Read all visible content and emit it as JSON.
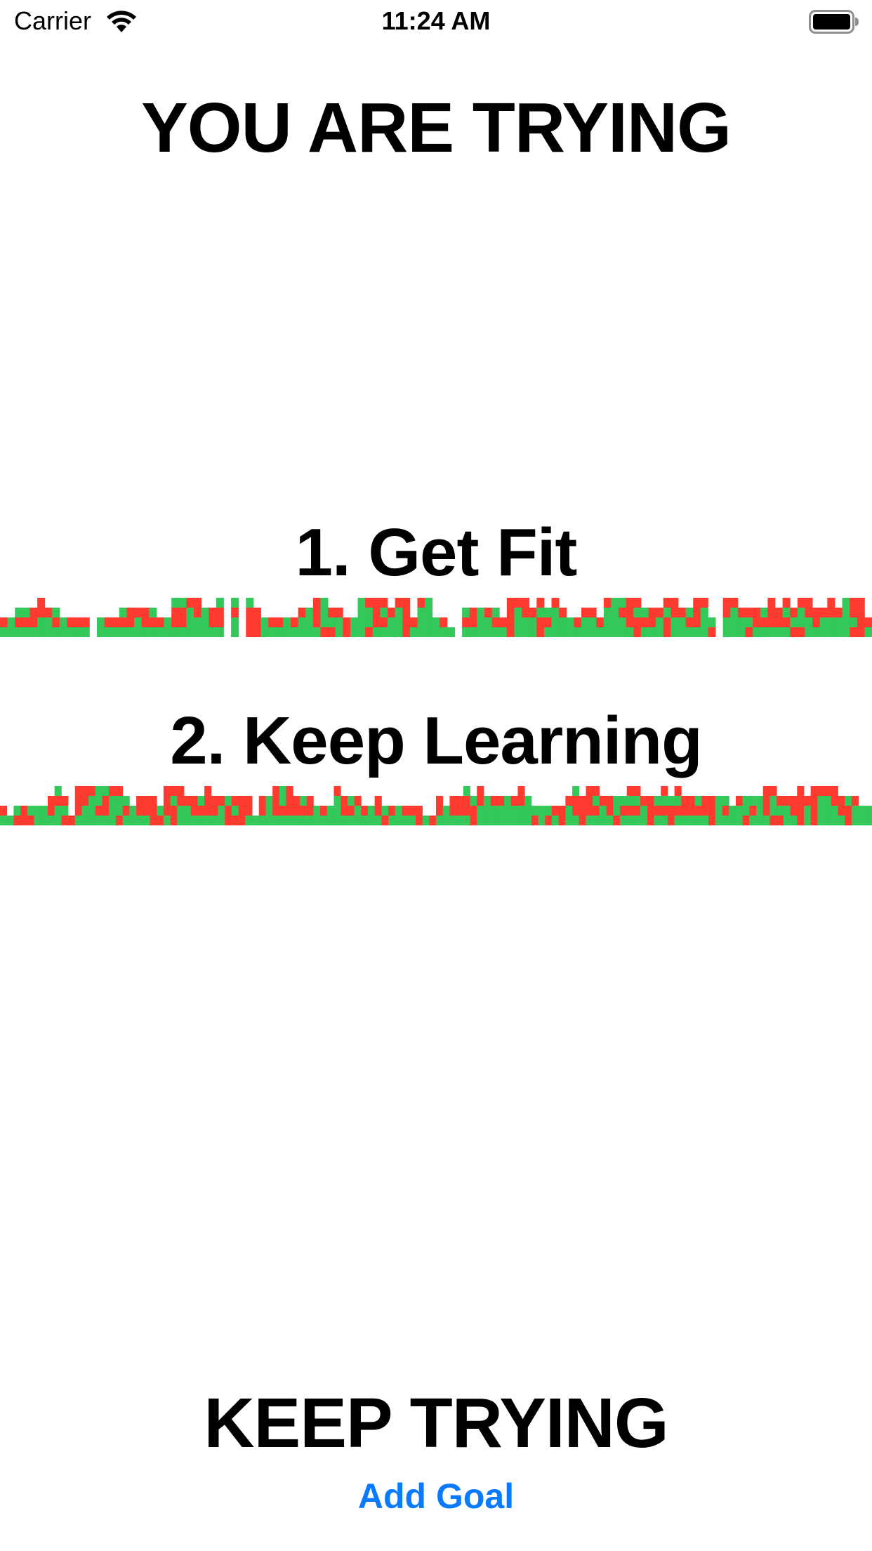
{
  "status_bar": {
    "carrier": "Carrier",
    "time": "11:24 AM",
    "wifi_icon": "wifi-icon",
    "battery_icon": "battery-icon"
  },
  "header": {
    "title": "YOU ARE TRYING"
  },
  "goals": [
    {
      "number": "1.",
      "title": "Get Fit",
      "history": {
        "columns": [
          2,
          2,
          3,
          3,
          3,
          4,
          3,
          3,
          2,
          2,
          2,
          2,
          0,
          2,
          2,
          2,
          3,
          3,
          3,
          3,
          3,
          2,
          2,
          4,
          4,
          4,
          4,
          3,
          3,
          4,
          0,
          4,
          0,
          4,
          3,
          2,
          2,
          2,
          2,
          2,
          3,
          3,
          4,
          4,
          3,
          3,
          2,
          2,
          4,
          4,
          4,
          4,
          3,
          4,
          4,
          2,
          4,
          4,
          2,
          2,
          1,
          0,
          3,
          3,
          3,
          3,
          3,
          2,
          4,
          4,
          4,
          3,
          4,
          3,
          4,
          3,
          2,
          2,
          3,
          3,
          2,
          4,
          4,
          4,
          4,
          4,
          3,
          3,
          3,
          4,
          4,
          3,
          3,
          4,
          4,
          2,
          0,
          4,
          4,
          3,
          3,
          3,
          3,
          4,
          3,
          4,
          3,
          4,
          4,
          3,
          3,
          4,
          3,
          4,
          4,
          4,
          2
        ],
        "success_ratio": 0.55,
        "success_color": "#34c759",
        "failure_color": "#ff3b30",
        "seed": 11
      }
    },
    {
      "number": "2.",
      "title": "Keep Learning",
      "history": {
        "columns": [
          2,
          1,
          2,
          2,
          2,
          2,
          2,
          3,
          4,
          3,
          1,
          4,
          4,
          4,
          4,
          4,
          4,
          4,
          3,
          2,
          3,
          3,
          3,
          2,
          4,
          4,
          4,
          3,
          3,
          3,
          4,
          3,
          3,
          3,
          3,
          3,
          3,
          1,
          3,
          3,
          4,
          4,
          4,
          3,
          3,
          3,
          2,
          2,
          2,
          4,
          3,
          3,
          3,
          2,
          2,
          3,
          2,
          2,
          2,
          2,
          2,
          2,
          1,
          1,
          3,
          2,
          3,
          3,
          4,
          3,
          4,
          3,
          3,
          3,
          3,
          3,
          4,
          3,
          2,
          2,
          2,
          2,
          2,
          3,
          4,
          3,
          4,
          4,
          3,
          3,
          3,
          3,
          4,
          4,
          3,
          3,
          3,
          4,
          3,
          4,
          3,
          3,
          3,
          3,
          3,
          3,
          3,
          2,
          3,
          3,
          3,
          3,
          4,
          4,
          3,
          3,
          3,
          4,
          3,
          4,
          4,
          4,
          4,
          3,
          3,
          3,
          2,
          2
        ],
        "success_ratio": 0.55,
        "success_color": "#34c759",
        "failure_color": "#ff3b30",
        "seed": 29
      }
    }
  ],
  "footer": {
    "title": "KEEP TRYING",
    "add_goal_label": "Add Goal"
  }
}
